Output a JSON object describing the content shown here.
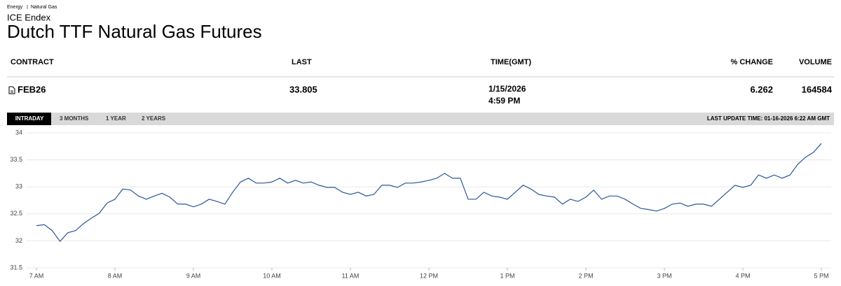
{
  "breadcrumb": [
    "Energy",
    "Natural Gas"
  ],
  "exchange": "ICE Endex",
  "title": "Dutch TTF Natural Gas Futures",
  "table": {
    "columns": [
      "CONTRACT",
      "LAST",
      "TIME(GMT)",
      "% CHANGE",
      "VOLUME"
    ],
    "row": {
      "contract": "FEB26",
      "last": 33.805,
      "time": [
        "1/15/2026",
        "4:59 PM"
      ],
      "change": 6.262,
      "volume": 164584
    }
  },
  "tabs": [
    "INTRADAY",
    "3 MONTHS",
    "1 YEAR",
    "2 YEARS"
  ],
  "last_update": "LAST UPDATE TIME: 01-16-2026 6:22 AM GMT",
  "chart_data": {
    "type": "line",
    "x": [
      7,
      7.1,
      7.2,
      7.3,
      7.4,
      7.5,
      7.6,
      7.7,
      7.8,
      7.9,
      8,
      8.1,
      8.2,
      8.3,
      8.4,
      8.5,
      8.6,
      8.7,
      8.8,
      8.9,
      9,
      9.1,
      9.2,
      9.3,
      9.4,
      9.5,
      9.6,
      9.7,
      9.8,
      9.9,
      10,
      10.1,
      10.2,
      10.3,
      10.4,
      10.5,
      10.6,
      10.7,
      10.8,
      10.9,
      11,
      11.1,
      11.2,
      11.3,
      11.4,
      11.5,
      11.6,
      11.7,
      11.8,
      11.9,
      12,
      12.1,
      12.2,
      12.3,
      12.4,
      12.5,
      12.6,
      12.7,
      12.8,
      12.9,
      13,
      13.1,
      13.2,
      13.3,
      13.4,
      13.5,
      13.6,
      13.7,
      13.8,
      13.9,
      14,
      14.1,
      14.2,
      14.3,
      14.4,
      14.5,
      14.6,
      14.7,
      14.8,
      14.9,
      15,
      15.1,
      15.2,
      15.3,
      15.4,
      15.5,
      15.6,
      15.7,
      15.8,
      15.9,
      16,
      16.1,
      16.2,
      16.3,
      16.4,
      16.5,
      16.6,
      16.7,
      16.8,
      16.9,
      17
    ],
    "series": [
      {
        "color": "#2b5797",
        "values": [
          32.28,
          32.3,
          32.19,
          31.99,
          32.15,
          32.19,
          32.32,
          32.42,
          32.51,
          32.7,
          32.77,
          32.96,
          32.94,
          32.83,
          32.77,
          32.83,
          32.88,
          32.81,
          32.68,
          32.68,
          32.63,
          32.68,
          32.77,
          32.73,
          32.68,
          32.9,
          33.09,
          33.16,
          33.07,
          33.07,
          33.09,
          33.16,
          33.07,
          33.12,
          33.07,
          33.09,
          33.03,
          32.99,
          32.99,
          32.9,
          32.86,
          32.9,
          32.83,
          32.86,
          33.03,
          33.03,
          32.99,
          33.07,
          33.07,
          33.09,
          33.12,
          33.16,
          33.25,
          33.16,
          33.16,
          32.77,
          32.77,
          32.9,
          32.83,
          32.81,
          32.77,
          32.9,
          33.03,
          32.96,
          32.86,
          32.83,
          32.81,
          32.68,
          32.77,
          32.73,
          32.81,
          32.94,
          32.77,
          32.83,
          32.83,
          32.77,
          32.68,
          32.6,
          32.58,
          32.55,
          32.6,
          32.68,
          32.7,
          32.64,
          32.68,
          32.68,
          32.64,
          32.77,
          32.9,
          33.03,
          32.99,
          33.03,
          33.22,
          33.16,
          33.22,
          33.16,
          33.22,
          33.42,
          33.55,
          33.64,
          33.805
        ]
      }
    ],
    "xlim": [
      6.9,
      17.1
    ],
    "xticks": [
      {
        "value": 7,
        "label": "7 AM"
      },
      {
        "value": 8,
        "label": "8 AM"
      },
      {
        "value": 9,
        "label": "9 AM"
      },
      {
        "value": 10,
        "label": "10 AM"
      },
      {
        "value": 11,
        "label": "11 AM"
      },
      {
        "value": 12,
        "label": "12 PM"
      },
      {
        "value": 13,
        "label": "1 PM"
      },
      {
        "value": 14,
        "label": "2 PM"
      },
      {
        "value": 15,
        "label": "3 PM"
      },
      {
        "value": 16,
        "label": "4 PM"
      },
      {
        "value": 17,
        "label": "5 PM"
      }
    ],
    "ylim": [
      31.5,
      34
    ],
    "yticks": [
      31.5,
      32,
      32.5,
      33,
      33.5,
      34
    ],
    "grid": true
  }
}
